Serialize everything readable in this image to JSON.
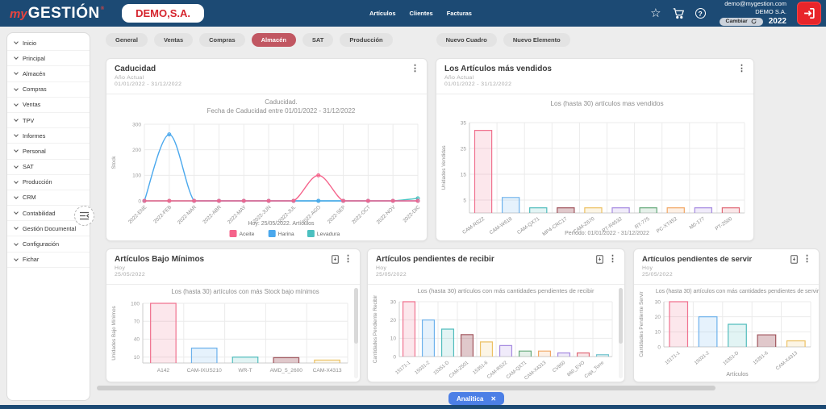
{
  "topbar": {
    "logo": {
      "prefix": "my",
      "name": "GESTIÓN",
      "registered": "®"
    },
    "company_button": "DEMO,S.A.",
    "nav": [
      "Artículos",
      "Clientes",
      "Facturas"
    ],
    "account": {
      "email": "demo@mygestion.com",
      "company": "DEMO S.A.",
      "change_button": "Cambiar",
      "year": "2022"
    }
  },
  "icons": {
    "kebab": "⋮",
    "star": "☆",
    "help": "?",
    "close": "✕"
  },
  "colors": {
    "topbar_navy": "#1c4a74",
    "active_tab_red": "#c15762",
    "chip_blue": "#4c7fe6",
    "exit_red": "#e8252a",
    "logo_red": "#e8443f"
  },
  "sidebar": {
    "items": [
      "Inicio",
      "Principal",
      "Almacén",
      "Compras",
      "Ventas",
      "TPV",
      "Informes",
      "Personal",
      "SAT",
      "Producción",
      "CRM",
      "Contabilidad",
      "Gestión Documental",
      "Configuración",
      "Fichar"
    ]
  },
  "tabs": {
    "items": [
      "General",
      "Ventas",
      "Compras",
      "Almacén",
      "SAT",
      "Producción"
    ],
    "active": "Almacén"
  },
  "actions": [
    "Nuevo Cuadro",
    "Nuevo Elemento"
  ],
  "cards": {
    "caducidad": {
      "title": "Caducidad",
      "subtitle_line1": "Año Actual",
      "subtitle_line2": "01/01/2022 - 31/12/2022"
    },
    "mas_vendidos": {
      "title": "Los Artículos más vendidos",
      "subtitle_line1": "Año Actual",
      "subtitle_line2": "01/01/2022 - 31/12/2022"
    },
    "bajo_minimos": {
      "title": "Artículos Bajo Mínimos",
      "subtitle_line1": "Hoy",
      "subtitle_line2": "25/05/2022"
    },
    "pendientes_recibir": {
      "title": "Artículos pendientes de recibir",
      "subtitle_line1": "Hoy",
      "subtitle_line2": "25/05/2022"
    },
    "pendientes_servir": {
      "title": "Artículos pendientes de servir",
      "subtitle_line1": "Hoy",
      "subtitle_line2": "25/05/2022"
    }
  },
  "footer": {
    "chip_label": "Analitica"
  },
  "chart_data": [
    {
      "id": "caducidad",
      "type": "line",
      "title": "Caducidad.",
      "subtitle": "Fecha de Caducidad entre 01/01/2022 - 31/12/2022",
      "categories": [
        "2022-ENE",
        "2022-FEB",
        "2022-MAR",
        "2022-ABR",
        "2022-MAY",
        "2022-JUN",
        "2022-JUL",
        "2022-AGO",
        "2022-SEP",
        "2022-OCT",
        "2022-NOV",
        "2022-DIC"
      ],
      "series": [
        {
          "name": "Aceite",
          "color": "#f5638b",
          "values": [
            0,
            0,
            0,
            0,
            0,
            0,
            0,
            100,
            0,
            0,
            0,
            0
          ]
        },
        {
          "name": "Harina",
          "color": "#4aa8ed",
          "values": [
            0,
            260,
            0,
            0,
            0,
            0,
            0,
            0,
            0,
            0,
            0,
            0
          ]
        },
        {
          "name": "Levadura",
          "color": "#4bc0c0",
          "values": [
            0,
            0,
            0,
            0,
            0,
            0,
            0,
            0,
            0,
            0,
            0,
            10
          ]
        }
      ],
      "ylabel": "Stock",
      "yticks": [
        0,
        100,
        200,
        300
      ],
      "ylim": [
        0,
        300
      ],
      "xlabel": "Hoy: 25/05/2022. Artículos",
      "legend_position": "bottom",
      "grid": true
    },
    {
      "id": "vendidos",
      "type": "bar",
      "title": "Los (hasta 30) artículos mas vendidos",
      "categories": [
        "CAM-RS22",
        "CAM-W618",
        "CAM-QX71",
        "MP4-CRC17",
        "CAM-Z670",
        "PT-R4532",
        "RT-775",
        "PC-XT452",
        "M0-177",
        "PT-2500"
      ],
      "values": [
        32,
        6,
        2,
        2,
        2,
        2,
        2,
        2,
        2,
        2
      ],
      "bar_colors": [
        "#f0728f",
        "#6cb1ec",
        "#52bdbd",
        "#a0545c",
        "#ecc163",
        "#a58ae0",
        "#66a97b",
        "#f2a765",
        "#a58ae0",
        "#e06a78"
      ],
      "ylabel": "Unidades Vendidas",
      "yticks": [
        5,
        15,
        25,
        35
      ],
      "ylim": [
        0,
        35
      ],
      "xlabel": "Período: 01/01/2022 - 31/12/2022",
      "grid": true
    },
    {
      "id": "bajo",
      "type": "bar",
      "title": "Los (hasta 30) artículos con más Stock  bajo mínimos",
      "categories": [
        "A142",
        "CAM-IXUS210",
        "WR-T",
        "AMD_5_2600",
        "CAM-X4313"
      ],
      "values": [
        100,
        25,
        10,
        9,
        5
      ],
      "bar_colors": [
        "#f0728f",
        "#6cb1ec",
        "#52bdbd",
        "#a0545c",
        "#ecc163"
      ],
      "ylabel": "Unidades Bajo Mínimos",
      "yticks": [
        10,
        40,
        70,
        100
      ],
      "ylim": [
        0,
        100
      ],
      "xlabel": "",
      "grid": true
    },
    {
      "id": "recibir",
      "type": "bar",
      "title": "Los (hasta 30) artículos con más cantidades pendientes de recibir",
      "categories": [
        "15171-1",
        "15031-2",
        "15351-D",
        "CAM-Z501",
        "15351-6",
        "CAM-RS22",
        "CAM-QX71",
        "CAM-X4313",
        "CV850",
        "860_EVO",
        "Caja_Torre"
      ],
      "values": [
        30,
        20,
        15,
        12,
        8,
        6,
        3,
        3,
        2,
        2,
        1
      ],
      "bar_colors": [
        "#f0728f",
        "#6cb1ec",
        "#52bdbd",
        "#a0545c",
        "#ecc163",
        "#a58ae0",
        "#66a97b",
        "#f2a765",
        "#a58ae0",
        "#e06a78",
        "#74c5cf"
      ],
      "ylabel": "Cantidades Pendiente Recibir",
      "yticks": [
        0,
        10,
        20,
        30
      ],
      "ylim": [
        0,
        30
      ],
      "xlabel": "",
      "grid": true
    },
    {
      "id": "servir",
      "type": "bar",
      "title": "Los (hasta 30) artículos con más cantidades pendientes de servir",
      "categories": [
        "15171-1",
        "15031-2",
        "15351-D",
        "15351-6",
        "CAM-X4313"
      ],
      "values": [
        30,
        20,
        15,
        8,
        4
      ],
      "bar_colors": [
        "#f0728f",
        "#6cb1ec",
        "#52bdbd",
        "#a0545c",
        "#ecc163"
      ],
      "ylabel": "Cantidades Pendiente Servir",
      "yticks": [
        0,
        10,
        20,
        30
      ],
      "ylim": [
        0,
        30
      ],
      "xlabel": "Artículos",
      "grid": true
    }
  ]
}
